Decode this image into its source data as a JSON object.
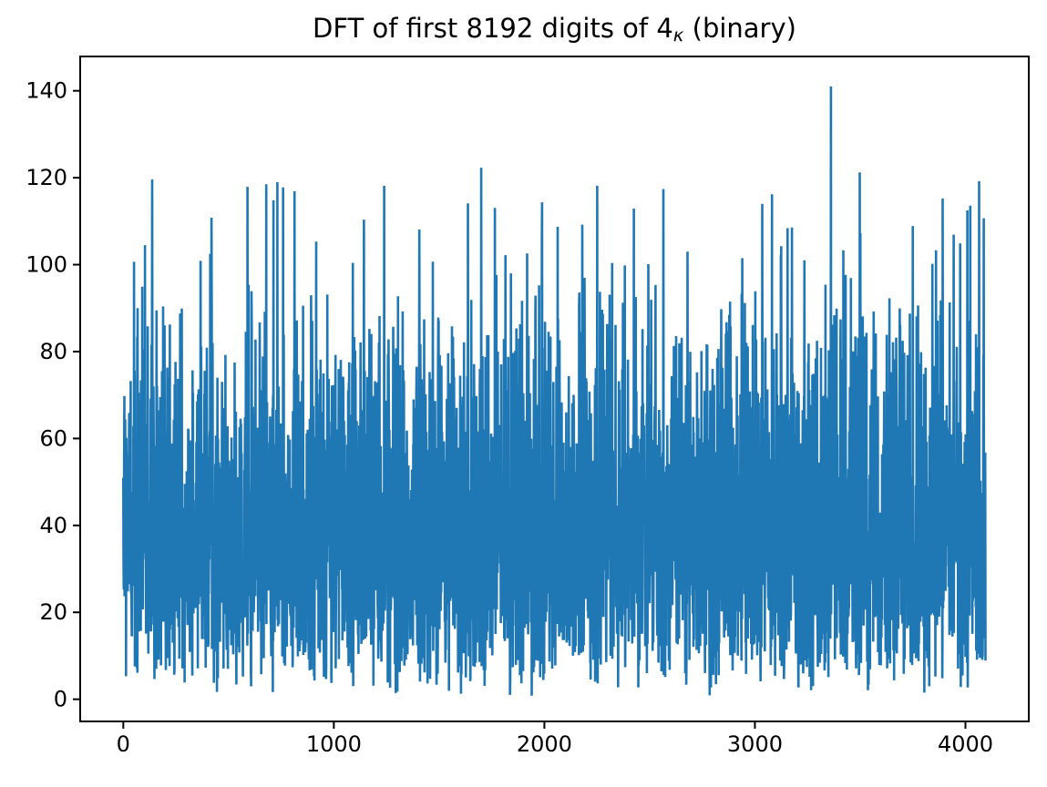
{
  "figure": {
    "title_prefix": "DFT of first 8192 digits of 4",
    "title_subscript": "κ",
    "title_suffix": " (binary)",
    "background_color": "#ffffff",
    "axis_color": "#000000"
  },
  "chart_data": {
    "type": "line",
    "title": "DFT of first 8192 digits of 4κ (binary)",
    "xlabel": "",
    "ylabel": "",
    "grid": false,
    "legend": null,
    "line_color": "#1f77b4",
    "line_width": 2.6,
    "x_tick_values": [
      0,
      1000,
      2000,
      3000,
      4000
    ],
    "x_tick_labels": [
      "0",
      "1000",
      "2000",
      "3000",
      "4000"
    ],
    "y_tick_values": [
      0,
      20,
      40,
      60,
      80,
      100,
      120,
      140
    ],
    "y_tick_labels": [
      "0",
      "20",
      "40",
      "60",
      "80",
      "100",
      "120",
      "140"
    ],
    "xlim": [
      -204.8,
      4300.8
    ],
    "ylim": [
      -5.1,
      147.9
    ],
    "n_points": 4096,
    "x_start": 0,
    "x_step": 1,
    "series_model": {
      "description": "Noisy magnitude spectrum of 8192 pseudo-random binary digits; Rayleigh-distributed magnitudes filling a dense band roughly 15-65 with spikes to 100-141 and dips near 1",
      "distribution": "rayleigh",
      "sigma": 32,
      "seed": 20240513,
      "clamp_min": 0.8,
      "clamp_max": 126
    },
    "data_max": {
      "x": 3361,
      "y": 141.0
    },
    "notable_peaks": [
      {
        "x": 103,
        "y": 104.5
      },
      {
        "x": 137,
        "y": 119.6
      },
      {
        "x": 419,
        "y": 110.8
      },
      {
        "x": 590,
        "y": 117.9
      },
      {
        "x": 713,
        "y": 114.8
      },
      {
        "x": 813,
        "y": 116.9
      },
      {
        "x": 916,
        "y": 105.3
      },
      {
        "x": 1090,
        "y": 100.4
      },
      {
        "x": 1406,
        "y": 108.1
      },
      {
        "x": 1700,
        "y": 122.3
      },
      {
        "x": 1988,
        "y": 105.0
      },
      {
        "x": 2063,
        "y": 108.7
      },
      {
        "x": 2180,
        "y": 109.2
      },
      {
        "x": 2425,
        "y": 112.9
      },
      {
        "x": 2565,
        "y": 117.4
      },
      {
        "x": 2680,
        "y": 103.0
      },
      {
        "x": 2940,
        "y": 101.5
      },
      {
        "x": 3155,
        "y": 108.4
      },
      {
        "x": 3235,
        "y": 101.0
      },
      {
        "x": 3361,
        "y": 141.0
      },
      {
        "x": 3420,
        "y": 103.3
      },
      {
        "x": 3750,
        "y": 108.9
      },
      {
        "x": 3843,
        "y": 100.2
      },
      {
        "x": 3975,
        "y": 104.9
      },
      {
        "x": 4065,
        "y": 119.2
      }
    ]
  }
}
